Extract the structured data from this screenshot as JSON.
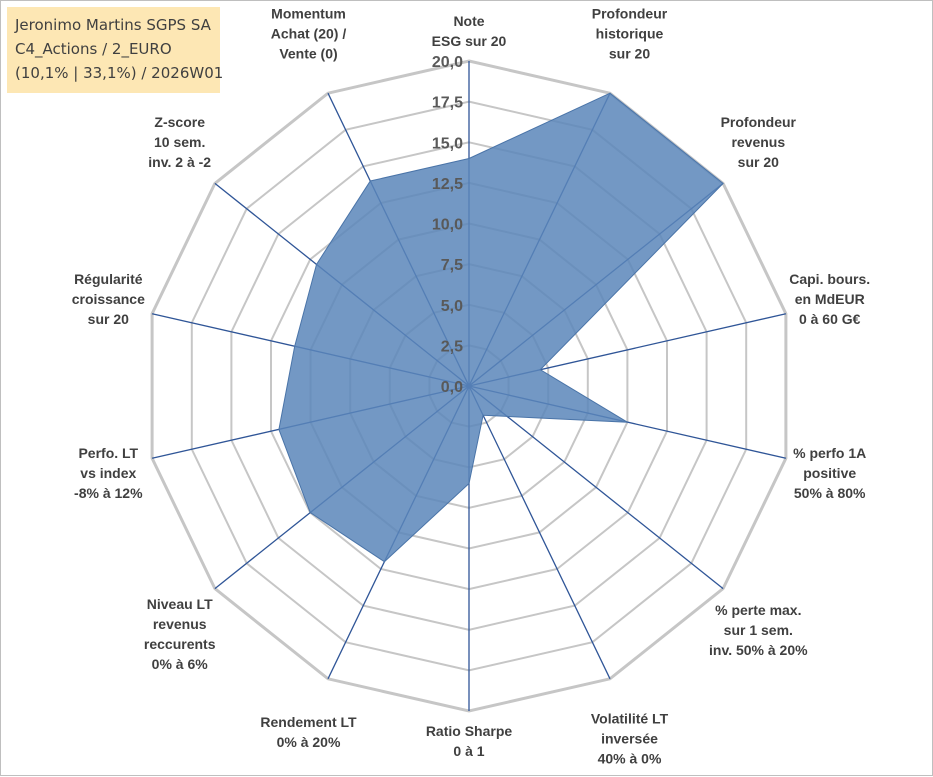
{
  "info_box": {
    "line1": "Jeronimo Martins SGPS SA",
    "line2": "C4_Actions / 2_EURO",
    "line3": "(10,1% | 33,1%) / 2026W01"
  },
  "colors": {
    "series_fill": "#5a86ba",
    "series_stroke": "#4a74a8",
    "spoke": "#2f5597",
    "grid": "#c6c6c6",
    "info_bg": "#fde7b4"
  },
  "chart_data": {
    "type": "radar",
    "title": "",
    "rmin": 0,
    "rmax": 20,
    "grid": true,
    "ticks": [
      "0,0",
      "2,5",
      "5,0",
      "7,5",
      "10,0",
      "12,5",
      "15,0",
      "17,5",
      "20,0"
    ],
    "axes": [
      [
        "Note",
        "ESG sur 20"
      ],
      [
        "Profondeur",
        "historique",
        "sur 20"
      ],
      [
        "Profondeur",
        "revenus",
        "sur 20"
      ],
      [
        "Capi. bours.",
        "en MdEUR",
        "0 à 60 G€"
      ],
      [
        "% perfo 1A",
        "positive",
        "50% à 80%"
      ],
      [
        "% perte max.",
        "sur 1 sem.",
        "inv. 50% à 20%"
      ],
      [
        "Volatilité LT",
        "inversée",
        "40% à 0%"
      ],
      [
        "Ratio Sharpe",
        "0 à 1"
      ],
      [
        "Rendement LT",
        "0% à 20%"
      ],
      [
        "Niveau LT",
        "revenus",
        "reccurents",
        "0% à 6%"
      ],
      [
        "Perfo. LT",
        "vs index",
        "-8% à 12%"
      ],
      [
        "Régularité",
        "croissance",
        "sur 20"
      ],
      [
        "Z-score",
        "10 sem.",
        "inv. 2 à -2"
      ],
      [
        "Momentum",
        "Achat (20) /",
        "Vente (0)"
      ]
    ],
    "series": [
      {
        "values": [
          14.0,
          20.0,
          20.0,
          4.5,
          10.0,
          3.0,
          2.0,
          6.0,
          12.0,
          12.5,
          12.0,
          11.0,
          12.0,
          14.0
        ]
      }
    ]
  }
}
